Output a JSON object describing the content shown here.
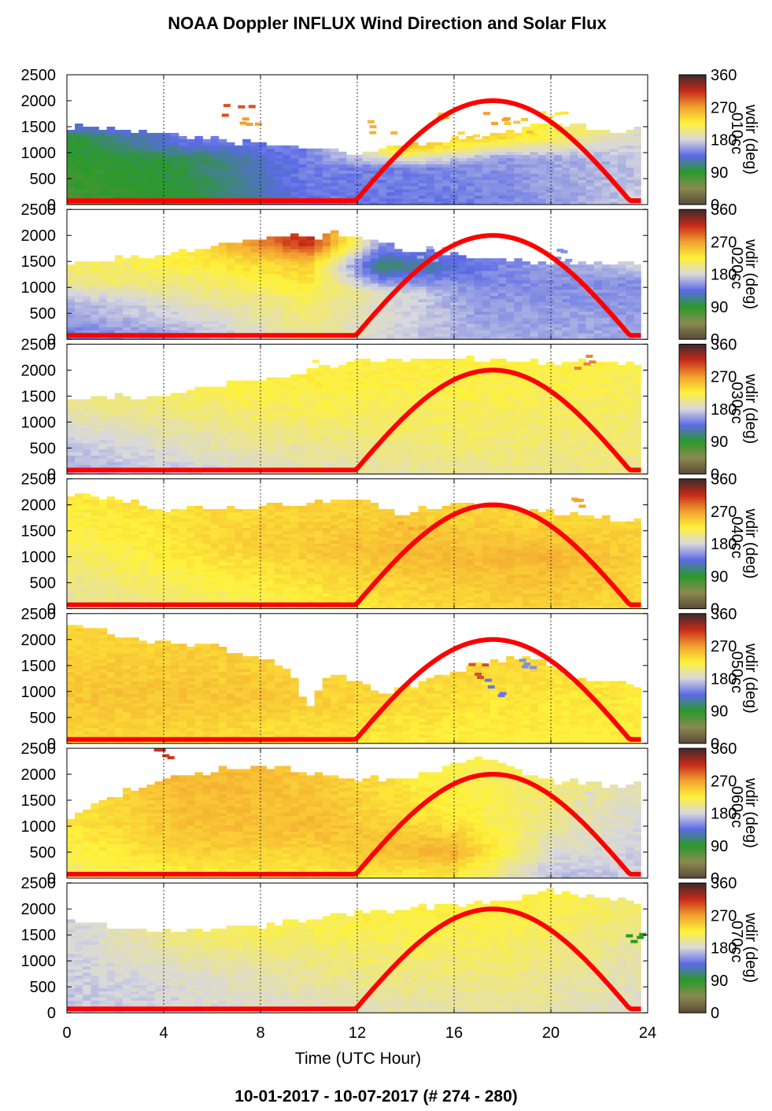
{
  "title": "NOAA Doppler INFLUX Wind Direction and Solar Flux",
  "footer": "10-01-2017 - 10-07-2017   (# 274 - 280)",
  "chart_data": {
    "type": "heatmap",
    "xlabel": "Time (UTC Hour)",
    "xlim": [
      0,
      24
    ],
    "xticks": [
      0,
      4,
      8,
      12,
      16,
      20,
      24
    ],
    "ylim": [
      0,
      2500
    ],
    "yticks": [
      0,
      500,
      1000,
      1500,
      2000,
      2500
    ],
    "colorbar": {
      "label": "wdir (deg)",
      "range": [
        0,
        360
      ],
      "ticks": [
        0,
        90,
        180,
        270,
        360
      ]
    },
    "colors": {
      "solar_flux_curve": "#ff0000",
      "colormap_stops": [
        [
          0,
          "#5a4a38"
        ],
        [
          45,
          "#8a8a50"
        ],
        [
          90,
          "#2a9a2a"
        ],
        [
          135,
          "#5a6ae6"
        ],
        [
          180,
          "#d8d8de"
        ],
        [
          225,
          "#fff23a"
        ],
        [
          270,
          "#f2a030"
        ],
        [
          315,
          "#c82a1a"
        ],
        [
          360,
          "#3a2a2a"
        ]
      ]
    },
    "solar_flux": {
      "sunrise_hour": 11.8,
      "solar_noon_hour": 17.5,
      "sunset_hour": 23.4,
      "peak_height_axis_units": 2000
    },
    "panels": [
      {
        "site": "010cc",
        "top": [
          [
            0,
            1480
          ],
          [
            4,
            1350
          ],
          [
            8,
            1150
          ],
          [
            12,
            980
          ],
          [
            16,
            1200
          ],
          [
            20,
            1500
          ],
          [
            23.7,
            1400
          ]
        ],
        "layers": [
          {
            "t": 0,
            "profile": [
              [
                0,
                80
              ],
              [
                1300,
                90
              ],
              [
                1450,
                130
              ]
            ]
          },
          {
            "t": 5,
            "profile": [
              [
                0,
                90
              ],
              [
                900,
                100
              ],
              [
                1200,
                140
              ]
            ]
          },
          {
            "t": 10,
            "profile": [
              [
                0,
                140
              ],
              [
                900,
                145
              ]
            ]
          },
          {
            "t": 14,
            "profile": [
              [
                0,
                140
              ],
              [
                700,
                145
              ],
              [
                1100,
                250
              ]
            ]
          },
          {
            "t": 18,
            "profile": [
              [
                0,
                145
              ],
              [
                900,
                155
              ],
              [
                1300,
                240
              ]
            ]
          },
          {
            "t": 23.7,
            "profile": [
              [
                0,
                175
              ],
              [
                900,
                170
              ],
              [
                1400,
                185
              ]
            ]
          }
        ],
        "speckles": [
          {
            "t": 7.0,
            "h": 1900,
            "v": 300
          },
          {
            "t": 7.5,
            "h": 1600,
            "v": 270
          },
          {
            "t": 13.0,
            "h": 1500,
            "v": 260
          },
          {
            "t": 15.0,
            "h": 1800,
            "v": 250
          },
          {
            "t": 16.5,
            "h": 1350,
            "v": 240
          },
          {
            "t": 17.5,
            "h": 1700,
            "v": 270
          },
          {
            "t": 18.5,
            "h": 1550,
            "v": 250
          },
          {
            "t": 20.0,
            "h": 1650,
            "v": 230
          }
        ]
      },
      {
        "site": "020cc",
        "top": [
          [
            0,
            1450
          ],
          [
            4,
            1600
          ],
          [
            8,
            1880
          ],
          [
            11,
            2000
          ],
          [
            14,
            1700
          ],
          [
            18,
            1500
          ],
          [
            23.7,
            1400
          ]
        ],
        "layers": [
          {
            "t": 0,
            "profile": [
              [
                0,
                140
              ],
              [
                800,
                170
              ],
              [
                1100,
                205
              ],
              [
                1450,
                210
              ]
            ]
          },
          {
            "t": 5,
            "profile": [
              [
                0,
                160
              ],
              [
                900,
                200
              ],
              [
                1500,
                225
              ]
            ]
          },
          {
            "t": 10,
            "profile": [
              [
                0,
                200
              ],
              [
                800,
                215
              ],
              [
                1500,
                250
              ],
              [
                1850,
                320
              ]
            ]
          },
          {
            "t": 13,
            "profile": [
              [
                0,
                180
              ],
              [
                900,
                190
              ],
              [
                1400,
                100
              ],
              [
                1800,
                150
              ]
            ]
          },
          {
            "t": 17,
            "profile": [
              [
                0,
                165
              ],
              [
                1000,
                150
              ],
              [
                1500,
                140
              ]
            ]
          },
          {
            "t": 23.7,
            "profile": [
              [
                0,
                160
              ],
              [
                1100,
                150
              ],
              [
                1400,
                175
              ]
            ]
          }
        ],
        "speckles": [
          {
            "t": 15.0,
            "h": 1650,
            "v": 160
          },
          {
            "t": 20.5,
            "h": 1700,
            "v": 150
          }
        ]
      },
      {
        "site": "030cc",
        "top": [
          [
            0,
            1380
          ],
          [
            4,
            1500
          ],
          [
            8,
            1800
          ],
          [
            12,
            2100
          ],
          [
            16,
            2200
          ],
          [
            20,
            2150
          ],
          [
            23.7,
            2050
          ]
        ],
        "layers": [
          {
            "t": 0,
            "profile": [
              [
                0,
                160
              ],
              [
                800,
                180
              ],
              [
                1300,
                200
              ]
            ]
          },
          {
            "t": 8,
            "profile": [
              [
                0,
                185
              ],
              [
                800,
                205
              ],
              [
                1700,
                225
              ]
            ]
          },
          {
            "t": 16,
            "profile": [
              [
                0,
                200
              ],
              [
                1000,
                215
              ],
              [
                2100,
                225
              ]
            ]
          },
          {
            "t": 23.7,
            "profile": [
              [
                0,
                205
              ],
              [
                1000,
                210
              ],
              [
                2000,
                220
              ]
            ]
          }
        ],
        "speckles": [
          {
            "t": 21.5,
            "h": 2200,
            "v": 280
          },
          {
            "t": 10.5,
            "h": 2150,
            "v": 220
          }
        ]
      },
      {
        "site": "040cc",
        "top": [
          [
            0,
            2200
          ],
          [
            4,
            1900
          ],
          [
            8,
            1950
          ],
          [
            12,
            2050
          ],
          [
            14,
            1800
          ],
          [
            16,
            2000
          ],
          [
            20,
            1850
          ],
          [
            23.7,
            1650
          ]
        ],
        "layers": [
          {
            "t": 0,
            "profile": [
              [
                0,
                195
              ],
              [
                900,
                210
              ],
              [
                2000,
                228
              ]
            ]
          },
          {
            "t": 8,
            "profile": [
              [
                0,
                215
              ],
              [
                1200,
                245
              ],
              [
                1900,
                240
              ]
            ]
          },
          {
            "t": 14,
            "profile": [
              [
                0,
                235
              ],
              [
                1100,
                255
              ],
              [
                1800,
                245
              ]
            ]
          },
          {
            "t": 20,
            "profile": [
              [
                0,
                245
              ],
              [
                1000,
                258
              ],
              [
                1700,
                240
              ]
            ]
          },
          {
            "t": 23.7,
            "profile": [
              [
                0,
                235
              ],
              [
                1000,
                245
              ],
              [
                1600,
                240
              ]
            ]
          }
        ],
        "speckles": [
          {
            "t": 21.0,
            "h": 2100,
            "v": 268
          },
          {
            "t": 14.0,
            "h": 1600,
            "v": 265
          }
        ]
      },
      {
        "site": "050cc",
        "top": [
          [
            0,
            2300
          ],
          [
            3,
            1950
          ],
          [
            6,
            1850
          ],
          [
            9,
            1500
          ],
          [
            10,
            700
          ],
          [
            11,
            1350
          ],
          [
            13,
            900
          ],
          [
            15,
            1200
          ],
          [
            17,
            1500
          ],
          [
            19,
            1650
          ],
          [
            21,
            1200
          ],
          [
            23.7,
            1100
          ]
        ],
        "layers": [
          {
            "t": 0,
            "profile": [
              [
                0,
                240
              ],
              [
                1000,
                250
              ],
              [
                2000,
                240
              ]
            ]
          },
          {
            "t": 7,
            "profile": [
              [
                0,
                235
              ],
              [
                900,
                250
              ],
              [
                1500,
                245
              ]
            ]
          },
          {
            "t": 13,
            "profile": [
              [
                0,
                228
              ],
              [
                800,
                240
              ]
            ]
          },
          {
            "t": 18,
            "profile": [
              [
                0,
                225
              ],
              [
                900,
                232
              ],
              [
                1500,
                240
              ]
            ]
          },
          {
            "t": 23.7,
            "profile": [
              [
                0,
                225
              ],
              [
                1000,
                230
              ]
            ]
          }
        ],
        "speckles": [
          {
            "t": 17.0,
            "h": 1400,
            "v": 300
          },
          {
            "t": 17.3,
            "h": 1100,
            "v": 140
          },
          {
            "t": 19.0,
            "h": 1500,
            "v": 150
          }
        ]
      },
      {
        "site": "060cc",
        "top": [
          [
            0,
            1050
          ],
          [
            1,
            1350
          ],
          [
            3,
            1750
          ],
          [
            6,
            2050
          ],
          [
            8,
            2150
          ],
          [
            12,
            1900
          ],
          [
            14,
            1850
          ],
          [
            17,
            2300
          ],
          [
            20,
            1850
          ],
          [
            23.7,
            1750
          ]
        ],
        "layers": [
          {
            "t": 0,
            "profile": [
              [
                0,
                210
              ],
              [
                700,
                225
              ],
              [
                1050,
                230
              ]
            ]
          },
          {
            "t": 5,
            "profile": [
              [
                0,
                225
              ],
              [
                800,
                250
              ],
              [
                1900,
                258
              ]
            ]
          },
          {
            "t": 10,
            "profile": [
              [
                0,
                228
              ],
              [
                1000,
                255
              ],
              [
                1900,
                250
              ]
            ]
          },
          {
            "t": 16,
            "profile": [
              [
                0,
                225
              ],
              [
                500,
                262
              ],
              [
                1100,
                230
              ],
              [
                1900,
                220
              ]
            ]
          },
          {
            "t": 20,
            "profile": [
              [
                0,
                165
              ],
              [
                600,
                190
              ],
              [
                1500,
                210
              ]
            ]
          },
          {
            "t": 23.7,
            "profile": [
              [
                0,
                175
              ],
              [
                1000,
                180
              ],
              [
                1700,
                190
              ]
            ]
          }
        ],
        "speckles": [
          {
            "t": 4.0,
            "h": 2400,
            "v": 310
          },
          {
            "t": 21.0,
            "h": 1600,
            "v": 180
          }
        ]
      },
      {
        "site": "070cc",
        "top": [
          [
            0,
            1750
          ],
          [
            2,
            1600
          ],
          [
            4,
            1550
          ],
          [
            8,
            1650
          ],
          [
            12,
            1900
          ],
          [
            16,
            2050
          ],
          [
            20,
            2300
          ],
          [
            23.7,
            2100
          ]
        ],
        "layers": [
          {
            "t": 0,
            "profile": [
              [
                0,
                170
              ],
              [
                600,
                175
              ],
              [
                1700,
                178
              ]
            ]
          },
          {
            "t": 6,
            "profile": [
              [
                0,
                180
              ],
              [
                800,
                190
              ],
              [
                1500,
                215
              ]
            ]
          },
          {
            "t": 12,
            "profile": [
              [
                0,
                190
              ],
              [
                800,
                205
              ],
              [
                1800,
                222
              ]
            ]
          },
          {
            "t": 18,
            "profile": [
              [
                0,
                198
              ],
              [
                1000,
                212
              ],
              [
                2000,
                225
              ]
            ]
          },
          {
            "t": 23.7,
            "profile": [
              [
                0,
                185
              ],
              [
                1200,
                195
              ],
              [
                2000,
                210
              ]
            ]
          }
        ],
        "speckles": [
          {
            "t": 23.5,
            "h": 1500,
            "v": 90
          }
        ]
      }
    ]
  }
}
